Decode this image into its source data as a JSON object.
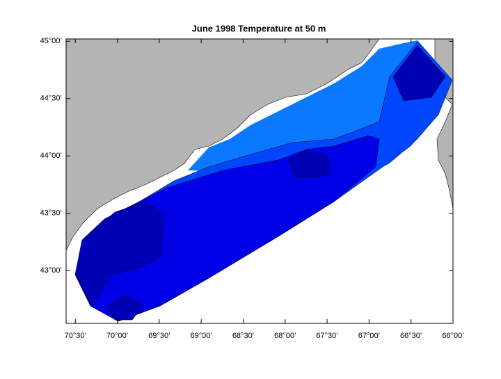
{
  "chart_data": {
    "type": "map",
    "title": "June 1998  Temperature at 50 m",
    "xlim": [
      -70.61,
      -66
    ],
    "ylim": [
      42.54,
      45.02
    ],
    "xticks": [
      {
        "value": -70.5,
        "label": "70°30’"
      },
      {
        "value": -70,
        "label": "70°00’"
      },
      {
        "value": -69.5,
        "label": "69°30’"
      },
      {
        "value": -69,
        "label": "69°00’"
      },
      {
        "value": -68.5,
        "label": "68°30’"
      },
      {
        "value": -68,
        "label": "68°00’"
      },
      {
        "value": -67.5,
        "label": "67°30’"
      },
      {
        "value": -67,
        "label": "67°00’"
      },
      {
        "value": -66.5,
        "label": "66°30’"
      },
      {
        "value": -66,
        "label": "66°00’"
      }
    ],
    "yticks": [
      {
        "value": 45,
        "label": "45°00’"
      },
      {
        "value": 44.5,
        "label": "44°30’"
      },
      {
        "value": 44,
        "label": "44°00’"
      },
      {
        "value": 43.5,
        "label": "43°30’"
      },
      {
        "value": 43,
        "label": "43°00’"
      }
    ]
  }
}
